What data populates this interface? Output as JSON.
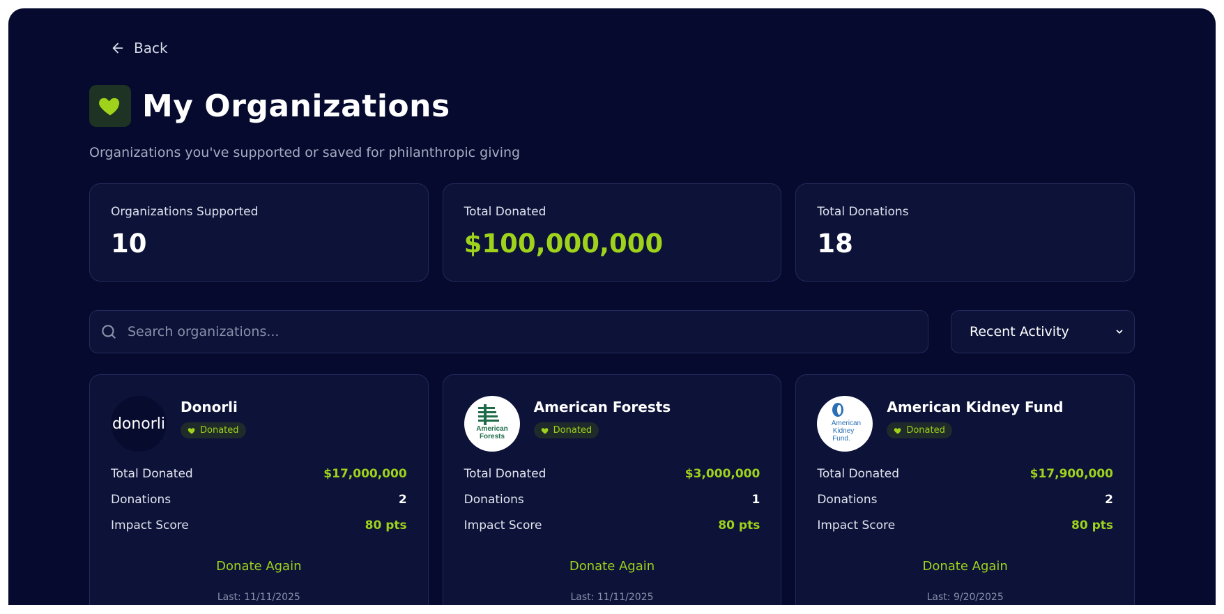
{
  "nav": {
    "back_label": "Back"
  },
  "header": {
    "title": "My Organizations",
    "subtitle": "Organizations you've supported or saved for philanthropic giving"
  },
  "stats": [
    {
      "label": "Organizations Supported",
      "value": "10"
    },
    {
      "label": "Total Donated",
      "value": "$100,000,000"
    },
    {
      "label": "Total Donations",
      "value": "18"
    }
  ],
  "search": {
    "placeholder": "Search organizations..."
  },
  "sort": {
    "selected": "Recent Activity"
  },
  "cards": [
    {
      "name": "Donorli",
      "logo_text": "donorli",
      "badge": "Donated",
      "total_label": "Total Donated",
      "total_value": "$17,000,000",
      "donations_label": "Donations",
      "donations_value": "2",
      "impact_label": "Impact Score",
      "impact_value": "80 pts",
      "action": "Donate Again",
      "last": "Last: 11/11/2025"
    },
    {
      "name": "American Forests",
      "logo_text": "American Forests",
      "badge": "Donated",
      "total_label": "Total Donated",
      "total_value": "$3,000,000",
      "donations_label": "Donations",
      "donations_value": "1",
      "impact_label": "Impact Score",
      "impact_value": "80 pts",
      "action": "Donate Again",
      "last": "Last: 11/11/2025"
    },
    {
      "name": "American Kidney Fund",
      "logo_text": "American Kidney Fund",
      "badge": "Donated",
      "total_label": "Total Donated",
      "total_value": "$17,900,000",
      "donations_label": "Donations",
      "donations_value": "2",
      "impact_label": "Impact Score",
      "impact_value": "80 pts",
      "action": "Donate Again",
      "last": "Last: 9/20/2025"
    }
  ],
  "colors": {
    "background": "#050a2e",
    "card": "#0c1238",
    "accent": "#9fd31b",
    "border": "#242a5a"
  },
  "icons": [
    "arrow-left-icon",
    "heart-icon",
    "search-icon",
    "chevron-down-icon"
  ]
}
